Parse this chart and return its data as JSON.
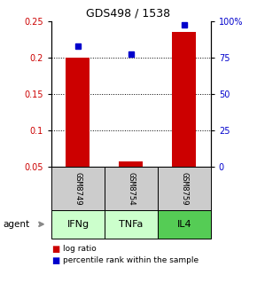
{
  "title": "GDS498 / 1538",
  "samples": [
    "GSM8749",
    "GSM8754",
    "GSM8759"
  ],
  "agents": [
    "IFNg",
    "TNFa",
    "IL4"
  ],
  "log_ratio": [
    0.2,
    0.058,
    0.235
  ],
  "percentile_rank_pct": [
    83,
    77,
    97
  ],
  "ylim_left": [
    0.05,
    0.25
  ],
  "ylim_right": [
    0,
    100
  ],
  "yticks_left": [
    0.05,
    0.1,
    0.15,
    0.2,
    0.25
  ],
  "yticks_right": [
    0,
    25,
    50,
    75,
    100
  ],
  "ytick_labels_left": [
    "0.05",
    "0.1",
    "0.15",
    "0.2",
    "0.25"
  ],
  "ytick_labels_right": [
    "0",
    "25",
    "50",
    "75",
    "100%"
  ],
  "grid_lines": [
    0.1,
    0.15,
    0.2
  ],
  "bar_color": "#cc0000",
  "dot_color": "#0000cc",
  "sample_box_color": "#cccccc",
  "agent_colors": [
    "#ccffcc",
    "#ccffcc",
    "#55cc55"
  ],
  "title_fontsize": 9,
  "tick_fontsize": 7,
  "sample_fontsize": 6.5,
  "agent_fontsize": 8,
  "legend_fontsize": 6.5,
  "agent_label_fontsize": 7.5
}
